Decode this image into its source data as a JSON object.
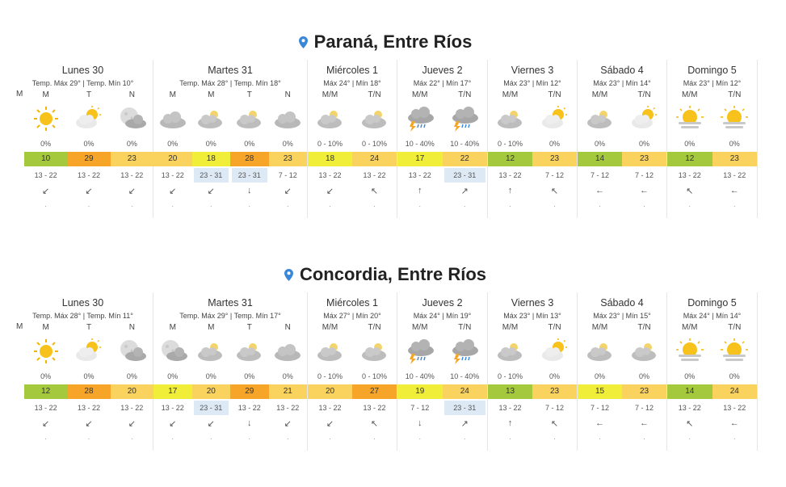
{
  "colors": {
    "green": "#a4c93d",
    "yellow": "#f1ee39",
    "orange": "#f6a528",
    "lightorange": "#fad25e",
    "pin": "#3a86d8"
  },
  "sections": [
    {
      "title": "Paraná, Entre Ríos",
      "lead_m": "M",
      "days": [
        {
          "name": "Lunes 30",
          "temps": "Temp. Máx 29° | Temp. Mín 10°",
          "width": 174,
          "cols": [
            {
              "label": "M",
              "icon": "sun",
              "rain": "0%",
              "temp": "10",
              "tc": "green",
              "wind": "13 - 22",
              "hi": false,
              "arrow": "↙"
            },
            {
              "label": "T",
              "icon": "sun-cloud",
              "rain": "0%",
              "temp": "29",
              "tc": "orange",
              "wind": "13 - 22",
              "hi": false,
              "arrow": "↙"
            },
            {
              "label": "N",
              "icon": "moon-cloud",
              "rain": "0%",
              "temp": "23",
              "tc": "lightorange",
              "wind": "13 - 22",
              "hi": false,
              "arrow": "↙"
            }
          ]
        },
        {
          "name": "Martes 31",
          "temps": "Temp. Máx 28° | Temp. Mín 18°",
          "width": 191,
          "cols": [
            {
              "label": "M",
              "icon": "cloud",
              "rain": "0%",
              "temp": "20",
              "tc": "lightorange",
              "wind": "13 - 22",
              "hi": false,
              "arrow": "↙"
            },
            {
              "label": "M",
              "icon": "sun-cloud-dim",
              "rain": "0%",
              "temp": "18",
              "tc": "yellow",
              "wind": "23 - 31",
              "hi": true,
              "arrow": "↙"
            },
            {
              "label": "T",
              "icon": "sun-cloud-dim",
              "rain": "0%",
              "temp": "28",
              "tc": "orange",
              "wind": "23 - 31",
              "hi": true,
              "arrow": "↓"
            },
            {
              "label": "N",
              "icon": "cloud",
              "rain": "0%",
              "temp": "23",
              "tc": "lightorange",
              "wind": "7 - 12",
              "hi": false,
              "arrow": "↙"
            }
          ]
        },
        {
          "name": "Miércoles 1",
          "temps": "Máx 24° | Mín 18°",
          "width": 111,
          "cols": [
            {
              "label": "M/M",
              "icon": "sun-cloud-dim",
              "rain": "0 - 10%",
              "temp": "18",
              "tc": "yellow",
              "wind": "13 - 22",
              "hi": false,
              "arrow": "↙"
            },
            {
              "label": "T/N",
              "icon": "sun-cloud-dim",
              "rain": "0 - 10%",
              "temp": "24",
              "tc": "lightorange",
              "wind": "13 - 22",
              "hi": false,
              "arrow": "↖"
            }
          ]
        },
        {
          "name": "Jueves 2",
          "temps": "Máx 22° | Mín 17°",
          "width": 112,
          "cols": [
            {
              "label": "M/M",
              "icon": "storm",
              "rain": "10 - 40%",
              "temp": "17",
              "tc": "yellow",
              "wind": "13 - 22",
              "hi": false,
              "arrow": "↑"
            },
            {
              "label": "T/N",
              "icon": "storm",
              "rain": "10 - 40%",
              "temp": "22",
              "tc": "lightorange",
              "wind": "23 - 31",
              "hi": true,
              "arrow": "↗"
            }
          ]
        },
        {
          "name": "Viernes 3",
          "temps": "Máx 23° | Mín 12°",
          "width": 111,
          "cols": [
            {
              "label": "M/M",
              "icon": "sun-cloud-dim",
              "rain": "0 - 10%",
              "temp": "12",
              "tc": "green",
              "wind": "13 - 22",
              "hi": false,
              "arrow": "↑"
            },
            {
              "label": "T/N",
              "icon": "sun-cloud",
              "rain": "0%",
              "temp": "23",
              "tc": "lightorange",
              "wind": "7 - 12",
              "hi": false,
              "arrow": "↖"
            }
          ]
        },
        {
          "name": "Sábado 4",
          "temps": "Máx 23° | Mín 14°",
          "width": 111,
          "cols": [
            {
              "label": "M/M",
              "icon": "sun-cloud-dim",
              "rain": "0%",
              "temp": "14",
              "tc": "green",
              "wind": "7 - 12",
              "hi": false,
              "arrow": "←"
            },
            {
              "label": "T/N",
              "icon": "sun-cloud",
              "rain": "0%",
              "temp": "23",
              "tc": "lightorange",
              "wind": "7 - 12",
              "hi": false,
              "arrow": "←"
            }
          ]
        },
        {
          "name": "Domingo 5",
          "temps": "Máx 23° | Mín 12°",
          "width": 112,
          "cols": [
            {
              "label": "M/M",
              "icon": "sun-haze",
              "rain": "0%",
              "temp": "12",
              "tc": "green",
              "wind": "13 - 22",
              "hi": false,
              "arrow": "↖"
            },
            {
              "label": "T/N",
              "icon": "sun-haze",
              "rain": "0%",
              "temp": "23",
              "tc": "lightorange",
              "wind": "13 - 22",
              "hi": false,
              "arrow": "←"
            }
          ]
        }
      ]
    },
    {
      "title": "Concordia, Entre Ríos",
      "lead_m": "M",
      "days": [
        {
          "name": "Lunes 30",
          "temps": "Temp. Máx 28° | Temp. Mín 11°",
          "width": 174,
          "cols": [
            {
              "label": "M",
              "icon": "sun",
              "rain": "0%",
              "temp": "12",
              "tc": "green",
              "wind": "13 - 22",
              "hi": false,
              "arrow": "↙"
            },
            {
              "label": "T",
              "icon": "sun-cloud",
              "rain": "0%",
              "temp": "28",
              "tc": "orange",
              "wind": "13 - 22",
              "hi": false,
              "arrow": "↙"
            },
            {
              "label": "N",
              "icon": "moon-cloud",
              "rain": "0%",
              "temp": "20",
              "tc": "lightorange",
              "wind": "13 - 22",
              "hi": false,
              "arrow": "↙"
            }
          ]
        },
        {
          "name": "Martes 31",
          "temps": "Temp. Máx 29° | Temp. Mín 17°",
          "width": 191,
          "cols": [
            {
              "label": "M",
              "icon": "moon-cloud",
              "rain": "0%",
              "temp": "17",
              "tc": "yellow",
              "wind": "13 - 22",
              "hi": false,
              "arrow": "↙"
            },
            {
              "label": "M",
              "icon": "sun-cloud-dim",
              "rain": "0%",
              "temp": "20",
              "tc": "lightorange",
              "wind": "23 - 31",
              "hi": true,
              "arrow": "↙"
            },
            {
              "label": "T",
              "icon": "sun-cloud-dim",
              "rain": "0%",
              "temp": "29",
              "tc": "orange",
              "wind": "13 - 22",
              "hi": false,
              "arrow": "↓"
            },
            {
              "label": "N",
              "icon": "cloud",
              "rain": "0%",
              "temp": "21",
              "tc": "lightorange",
              "wind": "13 - 22",
              "hi": false,
              "arrow": "↙"
            }
          ]
        },
        {
          "name": "Miércoles 1",
          "temps": "Máx 27° | Mín 20°",
          "width": 111,
          "cols": [
            {
              "label": "M/M",
              "icon": "sun-cloud-dim",
              "rain": "0 - 10%",
              "temp": "20",
              "tc": "lightorange",
              "wind": "13 - 22",
              "hi": false,
              "arrow": "↙"
            },
            {
              "label": "T/N",
              "icon": "sun-cloud-dim",
              "rain": "0 - 10%",
              "temp": "27",
              "tc": "orange",
              "wind": "13 - 22",
              "hi": false,
              "arrow": "↖"
            }
          ]
        },
        {
          "name": "Jueves 2",
          "temps": "Máx 24° | Mín 19°",
          "width": 112,
          "cols": [
            {
              "label": "M/M",
              "icon": "storm",
              "rain": "10 - 40%",
              "temp": "19",
              "tc": "yellow",
              "wind": "7 - 12",
              "hi": false,
              "arrow": "↓"
            },
            {
              "label": "T/N",
              "icon": "storm",
              "rain": "10 - 40%",
              "temp": "24",
              "tc": "lightorange",
              "wind": "23 - 31",
              "hi": true,
              "arrow": "↗"
            }
          ]
        },
        {
          "name": "Viernes 3",
          "temps": "Máx 23° | Mín 13°",
          "width": 111,
          "cols": [
            {
              "label": "M/M",
              "icon": "sun-cloud-dim",
              "rain": "0 - 10%",
              "temp": "13",
              "tc": "green",
              "wind": "13 - 22",
              "hi": false,
              "arrow": "↑"
            },
            {
              "label": "T/N",
              "icon": "sun-cloud",
              "rain": "0%",
              "temp": "23",
              "tc": "lightorange",
              "wind": "7 - 12",
              "hi": false,
              "arrow": "↖"
            }
          ]
        },
        {
          "name": "Sábado 4",
          "temps": "Máx 23° | Mín 15°",
          "width": 111,
          "cols": [
            {
              "label": "M/M",
              "icon": "sun-cloud-dim",
              "rain": "0%",
              "temp": "15",
              "tc": "yellow",
              "wind": "7 - 12",
              "hi": false,
              "arrow": "←"
            },
            {
              "label": "T/N",
              "icon": "sun-cloud-dim",
              "rain": "0%",
              "temp": "23",
              "tc": "lightorange",
              "wind": "7 - 12",
              "hi": false,
              "arrow": "←"
            }
          ]
        },
        {
          "name": "Domingo 5",
          "temps": "Máx 24° | Mín 14°",
          "width": 112,
          "cols": [
            {
              "label": "M/M",
              "icon": "sun-haze",
              "rain": "0%",
              "temp": "14",
              "tc": "green",
              "wind": "13 - 22",
              "hi": false,
              "arrow": "↖"
            },
            {
              "label": "T/N",
              "icon": "sun-haze",
              "rain": "0%",
              "temp": "24",
              "tc": "lightorange",
              "wind": "13 - 22",
              "hi": false,
              "arrow": "←"
            }
          ]
        }
      ]
    }
  ]
}
